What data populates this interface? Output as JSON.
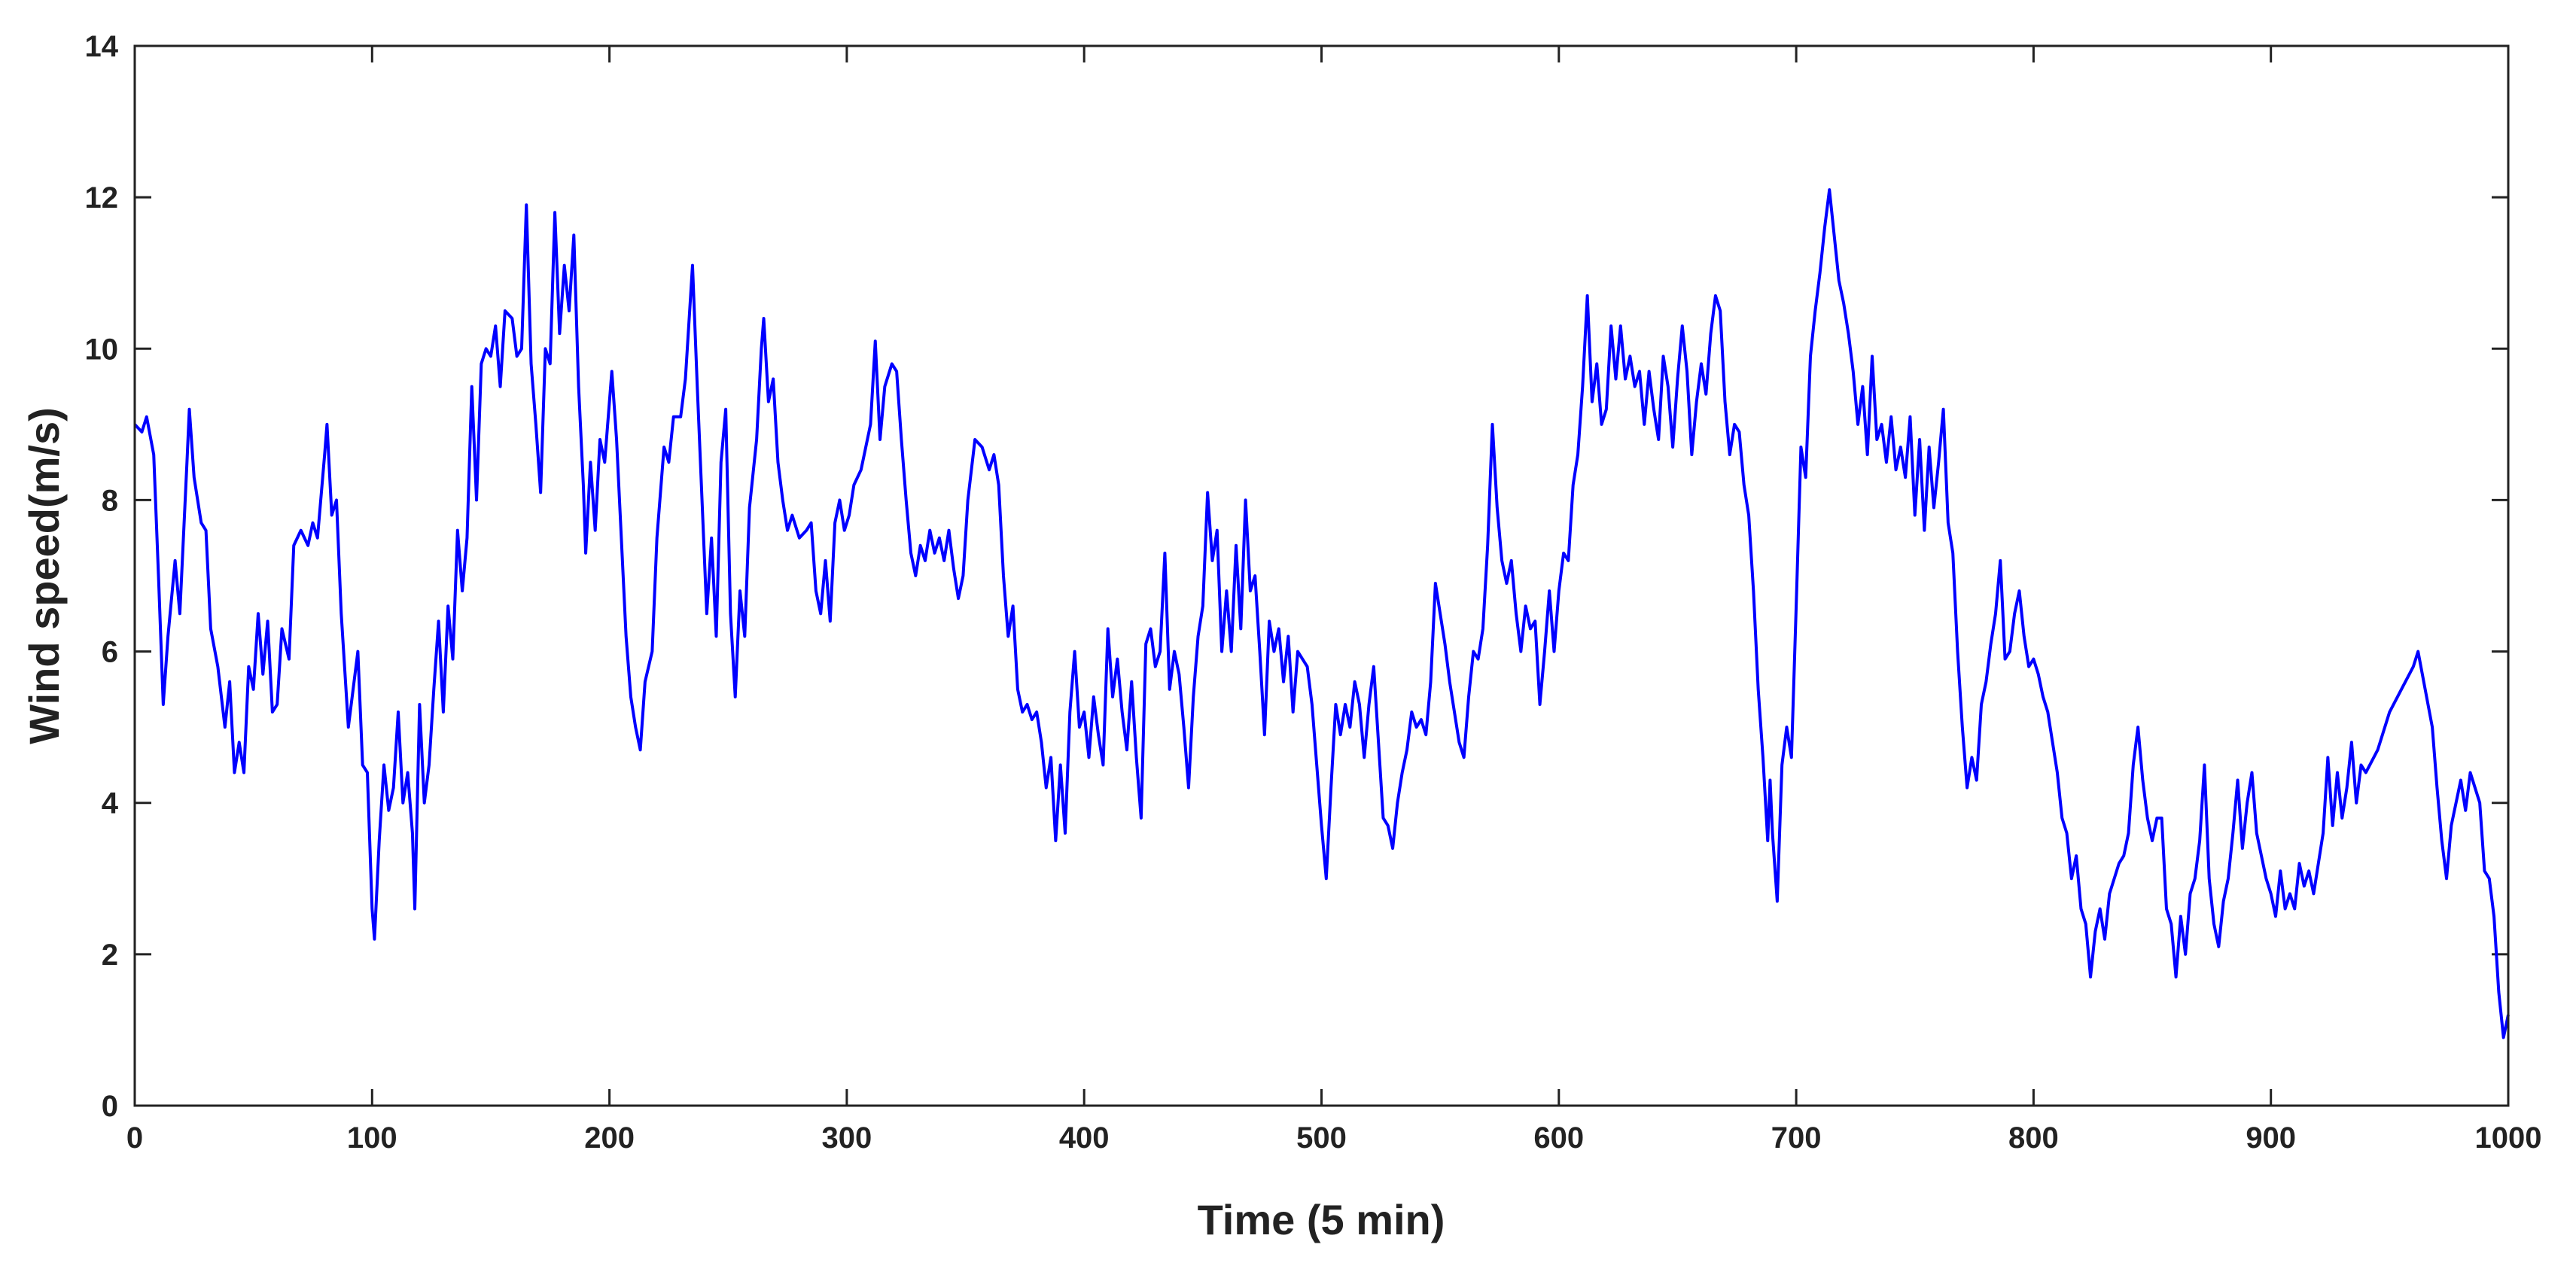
{
  "chart_data": {
    "type": "line",
    "xlabel": "Time (5 min)",
    "ylabel": "Wind speed(m/s)",
    "color": "#0000ff",
    "xlim": [
      0,
      1000
    ],
    "ylim": [
      0,
      14
    ],
    "xticks": [
      0,
      100,
      200,
      300,
      400,
      500,
      600,
      700,
      800,
      900,
      1000
    ],
    "yticks": [
      0,
      2,
      4,
      6,
      8,
      10,
      12,
      14
    ],
    "grid": false,
    "x": [
      0,
      3,
      5,
      8,
      10,
      12,
      14,
      17,
      19,
      22,
      23,
      25,
      28,
      30,
      32,
      35,
      38,
      40,
      42,
      44,
      46,
      48,
      50,
      52,
      54,
      56,
      58,
      60,
      62,
      65,
      67,
      70,
      73,
      75,
      77,
      80,
      81,
      83,
      85,
      87,
      90,
      92,
      94,
      96,
      98,
      100,
      101,
      103,
      105,
      107,
      109,
      111,
      113,
      115,
      117,
      118,
      120,
      122,
      124,
      126,
      128,
      130,
      132,
      134,
      136,
      138,
      140,
      142,
      144,
      146,
      148,
      150,
      152,
      154,
      156,
      159,
      161,
      163,
      165,
      167,
      169,
      171,
      173,
      175,
      177,
      179,
      181,
      183,
      185,
      187,
      189,
      190,
      192,
      194,
      196,
      198,
      200,
      201,
      203,
      205,
      207,
      209,
      211,
      213,
      215,
      218,
      220,
      223,
      225,
      227,
      230,
      232,
      234,
      235,
      237,
      239,
      241,
      243,
      245,
      247,
      249,
      251,
      253,
      255,
      257,
      259,
      262,
      264,
      265,
      267,
      269,
      271,
      273,
      275,
      277,
      280,
      283,
      285,
      287,
      289,
      291,
      293,
      295,
      297,
      299,
      301,
      303,
      306,
      308,
      310,
      312,
      314,
      316,
      319,
      321,
      323,
      325,
      327,
      329,
      331,
      333,
      335,
      337,
      339,
      341,
      343,
      345,
      347,
      349,
      351,
      354,
      357,
      360,
      362,
      364,
      366,
      368,
      370,
      372,
      374,
      376,
      378,
      380,
      382,
      384,
      386,
      388,
      390,
      392,
      394,
      396,
      398,
      400,
      402,
      404,
      406,
      408,
      410,
      412,
      414,
      416,
      418,
      420,
      422,
      424,
      426,
      428,
      430,
      432,
      434,
      436,
      438,
      440,
      442,
      444,
      446,
      448,
      450,
      452,
      454,
      456,
      458,
      460,
      462,
      464,
      466,
      468,
      470,
      472,
      474,
      476,
      478,
      480,
      482,
      484,
      486,
      488,
      490,
      492,
      494,
      496,
      498,
      500,
      502,
      504,
      506,
      508,
      510,
      512,
      514,
      516,
      518,
      520,
      522,
      524,
      526,
      528,
      530,
      532,
      534,
      536,
      538,
      540,
      542,
      544,
      546,
      548,
      550,
      552,
      554,
      556,
      558,
      560,
      562,
      564,
      566,
      568,
      570,
      572,
      574,
      576,
      578,
      580,
      582,
      584,
      586,
      588,
      590,
      592,
      594,
      596,
      598,
      600,
      602,
      604,
      606,
      608,
      610,
      612,
      614,
      616,
      618,
      620,
      622,
      624,
      626,
      628,
      630,
      632,
      634,
      636,
      638,
      640,
      642,
      644,
      646,
      648,
      650,
      652,
      654,
      656,
      658,
      660,
      662,
      664,
      666,
      668,
      670,
      672,
      674,
      676,
      678,
      680,
      682,
      684,
      686,
      688,
      689,
      690,
      692,
      694,
      696,
      698,
      700,
      702,
      704,
      706,
      708,
      710,
      712,
      714,
      716,
      718,
      720,
      722,
      724,
      726,
      728,
      730,
      732,
      734,
      736,
      738,
      740,
      742,
      744,
      746,
      748,
      750,
      752,
      754,
      756,
      758,
      760,
      762,
      764,
      766,
      768,
      770,
      772,
      774,
      776,
      778,
      780,
      782,
      784,
      786,
      788,
      790,
      792,
      794,
      796,
      798,
      800,
      802,
      804,
      806,
      808,
      810,
      812,
      814,
      816,
      818,
      820,
      822,
      824,
      826,
      828,
      830,
      832,
      834,
      836,
      838,
      840,
      842,
      844,
      846,
      848,
      850,
      852,
      854,
      856,
      858,
      860,
      862,
      864,
      866,
      868,
      870,
      872,
      874,
      876,
      878,
      880,
      882,
      884,
      886,
      888,
      890,
      892,
      894,
      896,
      898,
      900,
      902,
      904,
      906,
      908,
      910,
      912,
      914,
      916,
      918,
      920,
      922,
      924,
      926,
      928,
      930,
      932,
      934,
      936,
      938,
      940,
      945,
      950,
      955,
      960,
      962,
      965,
      968,
      970,
      972,
      974,
      976,
      978,
      980,
      982,
      984,
      986,
      988,
      990,
      992,
      994,
      996,
      998,
      1000
    ],
    "values": [
      9.0,
      8.9,
      9.1,
      8.6,
      7.0,
      5.3,
      6.2,
      7.2,
      6.5,
      8.5,
      9.2,
      8.3,
      7.7,
      7.6,
      6.3,
      5.8,
      5.0,
      5.6,
      4.4,
      4.8,
      4.4,
      5.8,
      5.5,
      6.5,
      5.7,
      6.4,
      5.2,
      5.3,
      6.3,
      5.9,
      7.4,
      7.6,
      7.4,
      7.7,
      7.5,
      8.6,
      9.0,
      7.8,
      8.0,
      6.5,
      5.0,
      5.5,
      6.0,
      4.5,
      4.4,
      2.6,
      2.2,
      3.5,
      4.5,
      3.9,
      4.2,
      5.2,
      4.0,
      4.4,
      3.6,
      2.6,
      5.3,
      4.0,
      4.5,
      5.5,
      6.4,
      5.2,
      6.6,
      5.9,
      7.6,
      6.8,
      7.5,
      9.5,
      8.0,
      9.8,
      10.0,
      9.9,
      10.3,
      9.5,
      10.5,
      10.4,
      9.9,
      10.0,
      11.9,
      9.8,
      9.0,
      8.1,
      10.0,
      9.8,
      11.8,
      10.2,
      11.1,
      10.5,
      11.5,
      9.5,
      8.2,
      7.3,
      8.5,
      7.6,
      8.8,
      8.5,
      9.3,
      9.7,
      8.8,
      7.5,
      6.2,
      5.4,
      5.0,
      4.7,
      5.6,
      6.0,
      7.5,
      8.7,
      8.5,
      9.1,
      9.1,
      9.6,
      10.6,
      11.1,
      9.5,
      8.0,
      6.5,
      7.5,
      6.2,
      8.5,
      9.2,
      6.5,
      5.4,
      6.8,
      6.2,
      7.9,
      8.8,
      10.0,
      10.4,
      9.3,
      9.6,
      8.5,
      8.0,
      7.6,
      7.8,
      7.5,
      7.6,
      7.7,
      6.8,
      6.5,
      7.2,
      6.4,
      7.7,
      8.0,
      7.6,
      7.8,
      8.2,
      8.4,
      8.7,
      9.0,
      10.1,
      8.8,
      9.5,
      9.8,
      9.7,
      8.8,
      8.0,
      7.3,
      7.0,
      7.4,
      7.2,
      7.6,
      7.3,
      7.5,
      7.2,
      7.6,
      7.1,
      6.7,
      7.0,
      8.0,
      8.8,
      8.7,
      8.4,
      8.6,
      8.2,
      7.0,
      6.2,
      6.6,
      5.5,
      5.2,
      5.3,
      5.1,
      5.2,
      4.8,
      4.2,
      4.6,
      3.5,
      4.5,
      3.6,
      5.2,
      6.0,
      5.0,
      5.2,
      4.6,
      5.4,
      4.9,
      4.5,
      6.3,
      5.4,
      5.9,
      5.2,
      4.7,
      5.6,
      4.6,
      3.8,
      6.1,
      6.3,
      5.8,
      6.0,
      7.3,
      5.5,
      6.0,
      5.7,
      5.0,
      4.2,
      5.4,
      6.2,
      6.6,
      8.1,
      7.2,
      7.6,
      6.0,
      6.8,
      6.0,
      7.4,
      6.3,
      8.0,
      6.8,
      7.0,
      6.0,
      4.9,
      6.4,
      6.0,
      6.3,
      5.6,
      6.2,
      5.2,
      6.0,
      5.9,
      5.8,
      5.3,
      4.5,
      3.7,
      3.0,
      4.2,
      5.3,
      4.9,
      5.3,
      5.0,
      5.6,
      5.3,
      4.6,
      5.3,
      5.8,
      4.8,
      3.8,
      3.7,
      3.4,
      4.0,
      4.4,
      4.7,
      5.2,
      5.0,
      5.1,
      4.9,
      5.6,
      6.9,
      6.5,
      6.1,
      5.6,
      5.2,
      4.8,
      4.6,
      5.4,
      6.0,
      5.9,
      6.3,
      7.4,
      9.0,
      7.9,
      7.2,
      6.9,
      7.2,
      6.5,
      6.0,
      6.6,
      6.3,
      6.4,
      5.3,
      6.0,
      6.8,
      6.0,
      6.8,
      7.3,
      7.2,
      8.2,
      8.6,
      9.5,
      10.7,
      9.3,
      9.8,
      9.0,
      9.2,
      10.3,
      9.6,
      10.3,
      9.6,
      9.9,
      9.5,
      9.7,
      9.0,
      9.7,
      9.2,
      8.8,
      9.9,
      9.5,
      8.7,
      9.6,
      10.3,
      9.7,
      8.6,
      9.3,
      9.8,
      9.4,
      10.2,
      10.7,
      10.5,
      9.3,
      8.6,
      9.0,
      8.9,
      8.2,
      7.8,
      6.8,
      5.5,
      4.6,
      3.5,
      4.3,
      3.6,
      2.7,
      4.5,
      5.0,
      4.6,
      6.6,
      8.7,
      8.3,
      9.9,
      10.5,
      11.0,
      11.6,
      12.1,
      11.5,
      10.9,
      10.6,
      10.2,
      9.7,
      9.0,
      9.5,
      8.6,
      9.9,
      8.8,
      9.0,
      8.5,
      9.1,
      8.4,
      8.7,
      8.3,
      9.1,
      7.8,
      8.8,
      7.6,
      8.7,
      7.9,
      8.5,
      9.2,
      7.7,
      7.3,
      6.0,
      5.0,
      4.2,
      4.6,
      4.3,
      5.3,
      5.6,
      6.1,
      6.5,
      7.2,
      5.9,
      6.0,
      6.5,
      6.8,
      6.2,
      5.8,
      5.9,
      5.7,
      5.4,
      5.2,
      4.8,
      4.4,
      3.8,
      3.6,
      3.0,
      3.3,
      2.6,
      2.4,
      1.7,
      2.3,
      2.6,
      2.2,
      2.8,
      3.0,
      3.2,
      3.3,
      3.6,
      4.5,
      5.0,
      4.3,
      3.8,
      3.5,
      3.8,
      3.8,
      2.6,
      2.4,
      1.7,
      2.5,
      2.0,
      2.8,
      3.0,
      3.5,
      4.5,
      3.0,
      2.4,
      2.1,
      2.7,
      3.0,
      3.6,
      4.3,
      3.4,
      4.0,
      4.4,
      3.6,
      3.3,
      3.0,
      2.8,
      2.5,
      3.1,
      2.6,
      2.8,
      2.6,
      3.2,
      2.9,
      3.1,
      2.8,
      3.2,
      3.6,
      4.6,
      3.7,
      4.4,
      3.8,
      4.2,
      4.8,
      4.0,
      4.5,
      4.4,
      4.7,
      5.2,
      5.5,
      5.8,
      6.0,
      5.5,
      5.0,
      4.2,
      3.5,
      3.0,
      3.7,
      4.0,
      4.3,
      3.9,
      4.4,
      4.2,
      4.0,
      3.1,
      3.0,
      2.5,
      1.5,
      0.9,
      1.2
    ]
  }
}
